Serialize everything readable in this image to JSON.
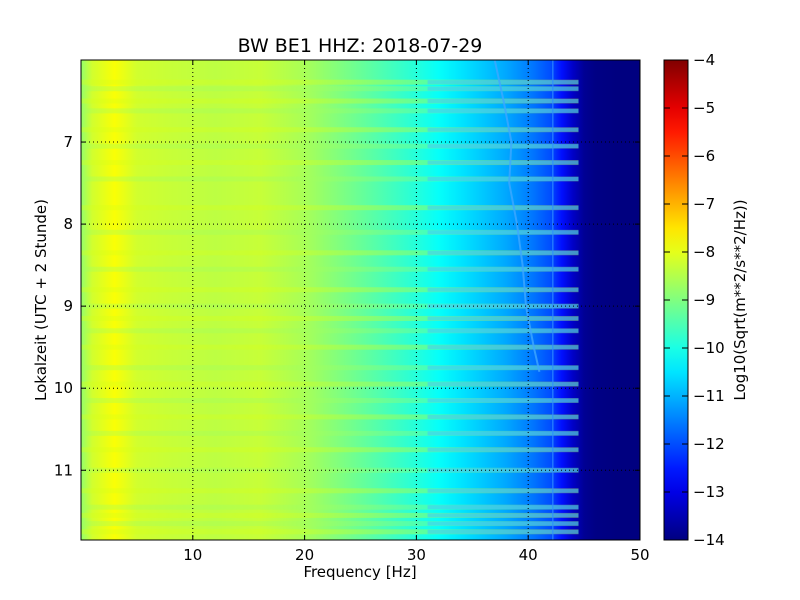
{
  "chart_data": {
    "type": "heatmap",
    "title": "BW BE1 HHZ: 2018-07-29",
    "xlabel": "Frequency [Hz]",
    "ylabel": "Lokalzeit (UTC + 2 Stunde)",
    "xlim": [
      0,
      50
    ],
    "ylim": [
      11.85,
      6.0
    ],
    "y_axis_inverted": true,
    "x_ticks": [
      10,
      20,
      30,
      40,
      50
    ],
    "x_tick_labels": [
      "10",
      "20",
      "30",
      "40",
      "50"
    ],
    "y_ticks": [
      7,
      8,
      9,
      10,
      11
    ],
    "y_tick_labels": [
      "7",
      "8",
      "9",
      "10",
      "11"
    ],
    "grid": true,
    "colormap": "jet",
    "colorbar": {
      "label": "Log10(Sqrt(m**2/s**2/Hz))",
      "range": [
        -14,
        -4
      ],
      "ticks": [
        -4,
        -5,
        -6,
        -7,
        -8,
        -9,
        -10,
        -11,
        -12,
        -13,
        -14
      ],
      "tick_labels": [
        "−4",
        "−5",
        "−6",
        "−7",
        "−8",
        "−9",
        "−10",
        "−11",
        "−12",
        "−13",
        "−14"
      ]
    },
    "spectral_profile": {
      "frequency_hz": [
        0,
        1,
        2,
        3,
        5,
        8,
        12,
        16,
        20,
        24,
        27,
        30,
        32,
        34,
        36,
        38,
        40,
        42,
        43,
        44,
        45,
        46,
        48,
        50
      ],
      "log_amplitude": [
        -8.8,
        -8.2,
        -8.0,
        -7.8,
        -8.2,
        -8.3,
        -8.4,
        -8.3,
        -8.6,
        -9.1,
        -9.5,
        -9.9,
        -10.2,
        -10.5,
        -10.8,
        -11.1,
        -11.5,
        -12.0,
        -12.6,
        -13.3,
        -13.8,
        -13.95,
        -14.0,
        -14.0
      ]
    },
    "noisy_time_bands": [
      6.27,
      6.35,
      6.5,
      6.62,
      6.85,
      7.05,
      7.25,
      7.45,
      7.8,
      8.1,
      8.35,
      8.55,
      8.8,
      9.0,
      9.15,
      9.3,
      9.5,
      9.75,
      9.95,
      10.15,
      10.35,
      10.55,
      10.75,
      11.0,
      11.25,
      11.45,
      11.55,
      11.65,
      11.75
    ],
    "wandering_line_hz": {
      "time": [
        6.0,
        6.5,
        7.0,
        7.5,
        8.0,
        8.5,
        9.0,
        9.5,
        9.8
      ],
      "frequency": [
        37.0,
        37.8,
        38.5,
        38.3,
        39.0,
        39.5,
        39.8,
        40.5,
        41.0
      ]
    },
    "steady_line_hz": 42.2
  }
}
